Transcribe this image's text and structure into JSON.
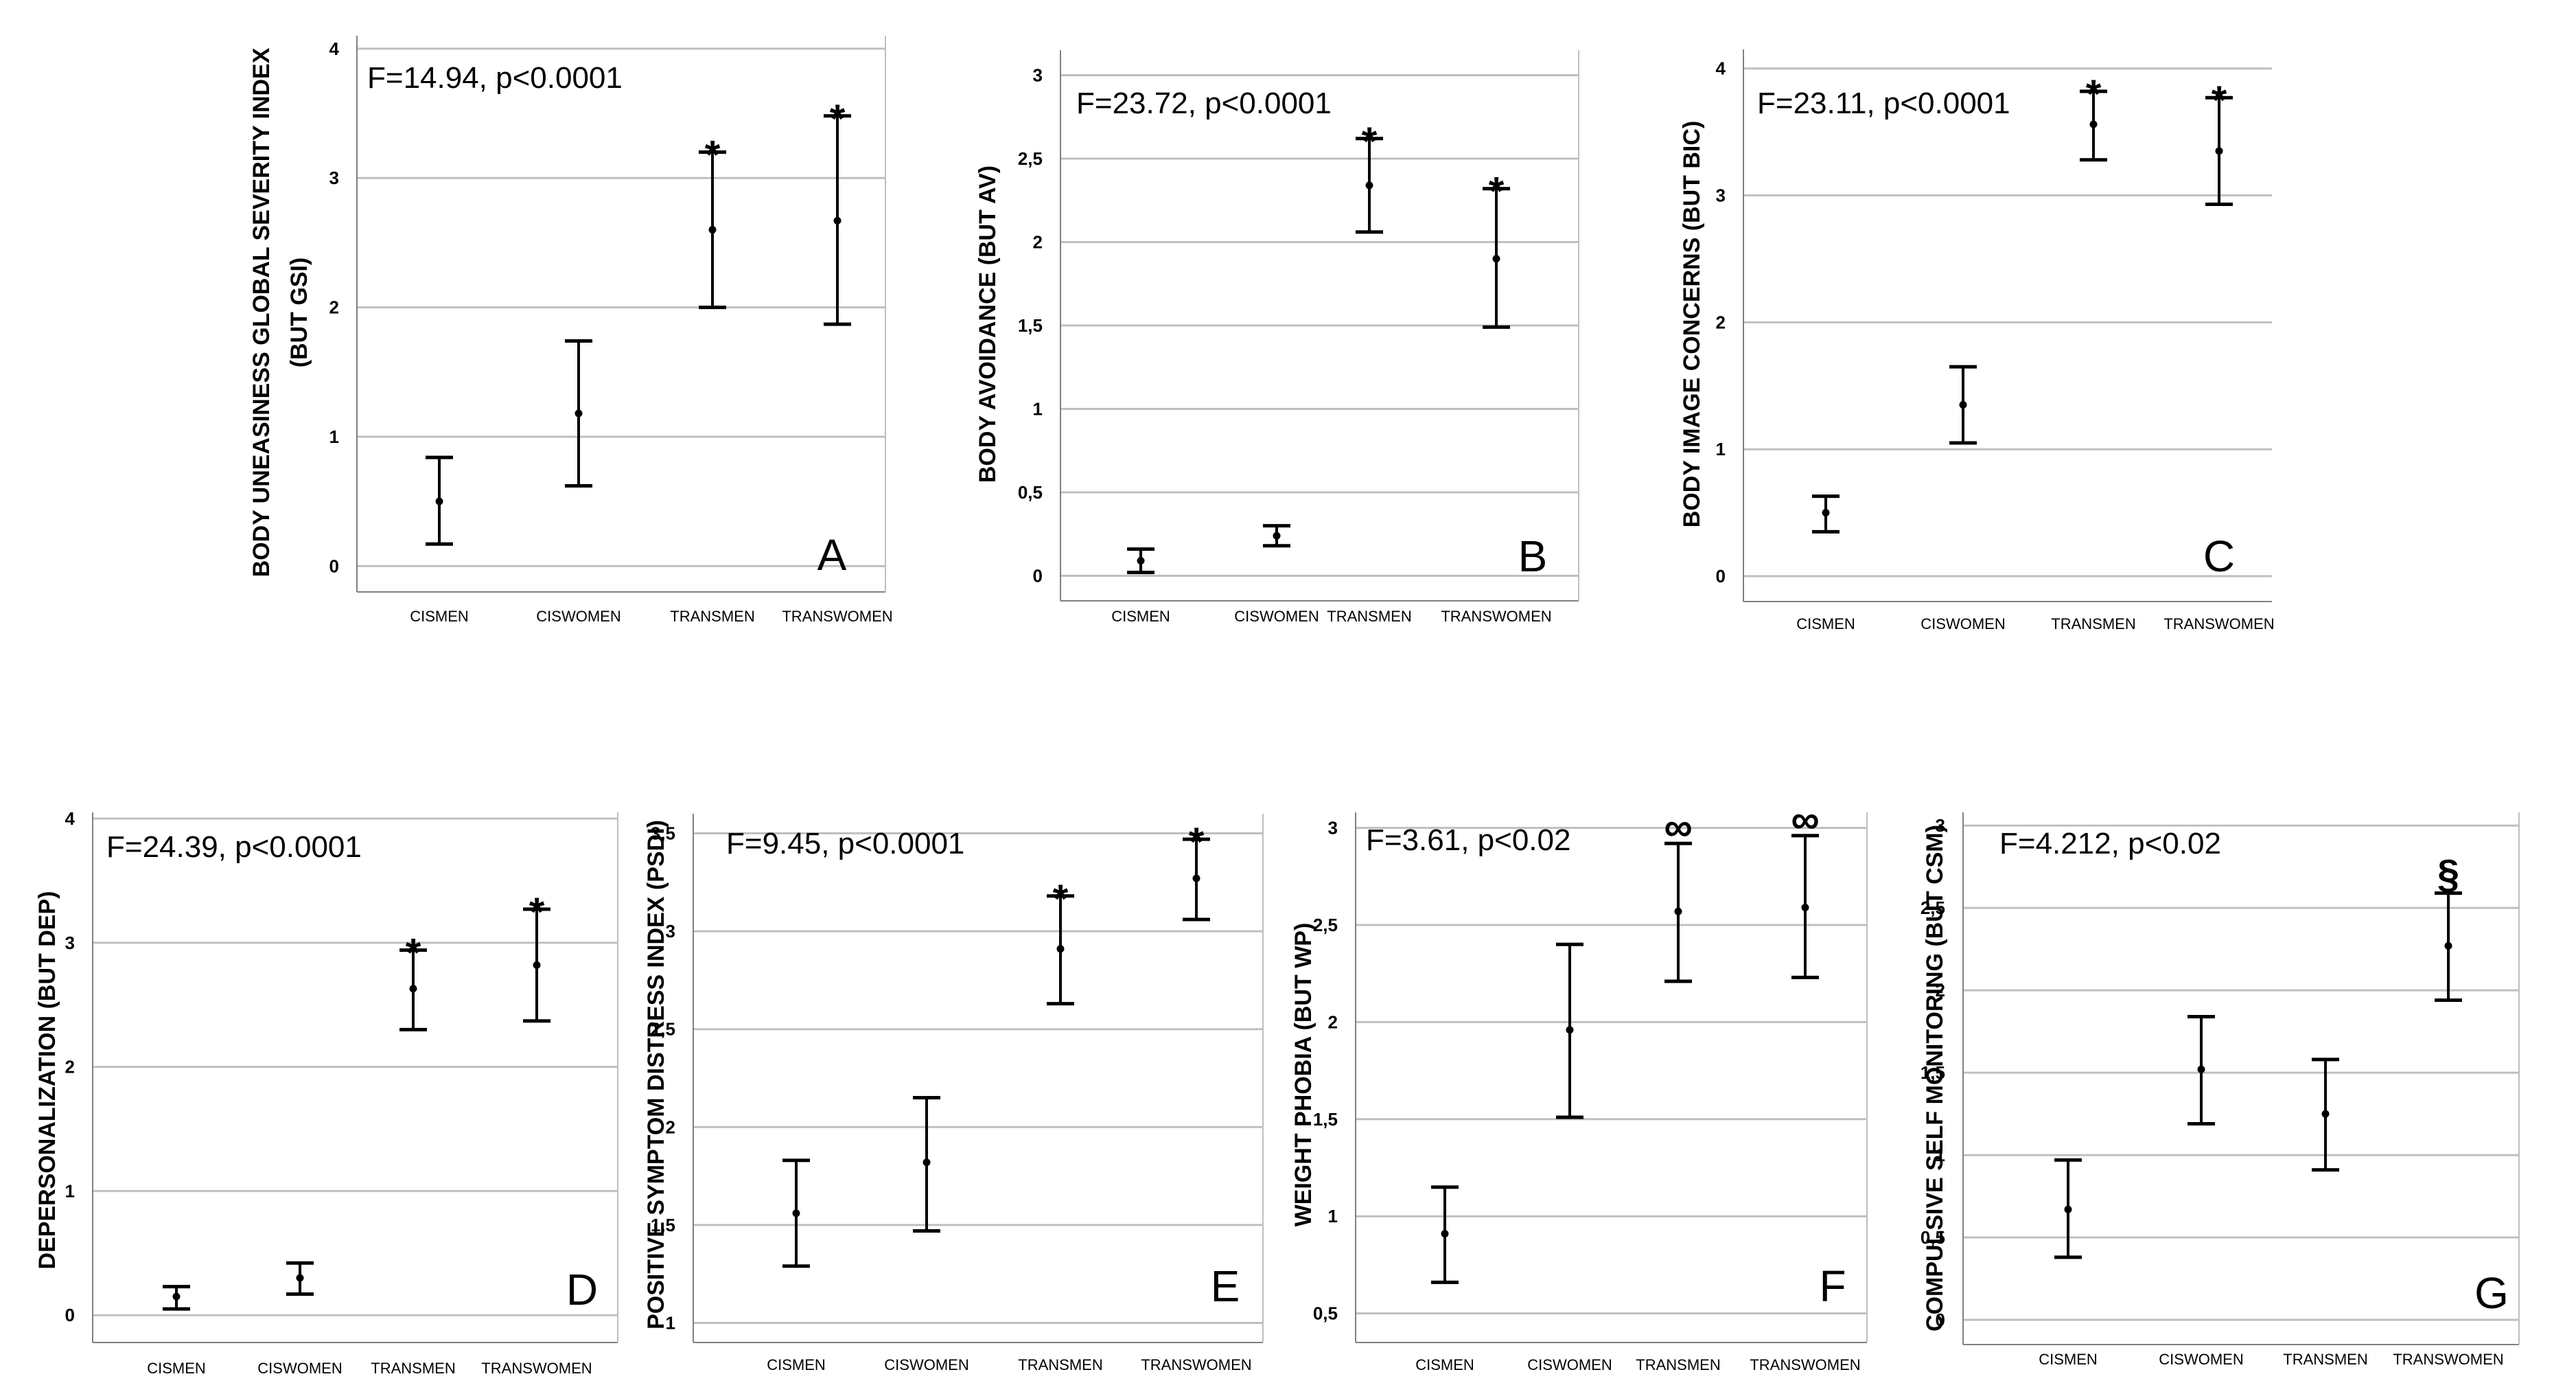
{
  "chart_data": [
    {
      "type": "errorbar",
      "panel": "A",
      "ylabel": "BODY UNEASINESS GLOBAL SEVERITY INDEX",
      "ylabel2": "(BUT GSI)",
      "stat": "F=14.94, p<0.0001",
      "categories": [
        "CISMEN",
        "CISWOMEN",
        "TRANSMEN",
        "TRANSWOMEN"
      ],
      "yticks": [
        0,
        1,
        2,
        3,
        4
      ],
      "ytick_labels": [
        "0",
        "1",
        "2",
        "3",
        "4"
      ],
      "ylim": [
        -0.2,
        4.1
      ],
      "series": [
        {
          "category": "CISMEN",
          "mean": 0.5,
          "lower": 0.17,
          "upper": 0.84,
          "mark": ""
        },
        {
          "category": "CISWOMEN",
          "mean": 1.18,
          "lower": 0.62,
          "upper": 1.74,
          "mark": ""
        },
        {
          "category": "TRANSMEN",
          "mean": 2.6,
          "lower": 2.0,
          "upper": 3.2,
          "mark": "*"
        },
        {
          "category": "TRANSWOMEN",
          "mean": 2.67,
          "lower": 1.87,
          "upper": 3.48,
          "mark": "*"
        }
      ]
    },
    {
      "type": "errorbar",
      "panel": "B",
      "ylabel": "BODY AVOIDANCE (BUT AV)",
      "ylabel2": "",
      "stat": "F=23.72, p<0.0001",
      "categories": [
        "CISMEN",
        "CISWOMEN",
        "TRANSMEN",
        "TRANSWOMEN"
      ],
      "yticks": [
        0,
        0.5,
        1,
        1.5,
        2,
        2.5,
        3
      ],
      "ytick_labels": [
        "0",
        "0,5",
        "1",
        "1,5",
        "2",
        "2,5",
        "3"
      ],
      "ylim": [
        -0.15,
        3.15
      ],
      "series": [
        {
          "category": "CISMEN",
          "mean": 0.09,
          "lower": 0.02,
          "upper": 0.16,
          "mark": ""
        },
        {
          "category": "CISWOMEN",
          "mean": 0.24,
          "lower": 0.18,
          "upper": 0.3,
          "mark": ""
        },
        {
          "category": "TRANSMEN",
          "mean": 2.34,
          "lower": 2.06,
          "upper": 2.62,
          "mark": "*"
        },
        {
          "category": "TRANSWOMEN",
          "mean": 1.9,
          "lower": 1.49,
          "upper": 2.32,
          "mark": "*"
        }
      ]
    },
    {
      "type": "errorbar",
      "panel": "C",
      "ylabel": "BODY IMAGE CONCERNS (BUT BIC)",
      "ylabel2": "",
      "stat": "F=23.11, p<0.0001",
      "categories": [
        "CISMEN",
        "CISWOMEN",
        "TRANSMEN",
        "TRANSWOMEN"
      ],
      "yticks": [
        0,
        1,
        2,
        3,
        4
      ],
      "ytick_labels": [
        "0",
        "1",
        "2",
        "3",
        "4"
      ],
      "ylim": [
        -0.2,
        4.15
      ],
      "series": [
        {
          "category": "CISMEN",
          "mean": 0.5,
          "lower": 0.35,
          "upper": 0.63,
          "mark": ""
        },
        {
          "category": "CISWOMEN",
          "mean": 1.35,
          "lower": 1.05,
          "upper": 1.65,
          "mark": ""
        },
        {
          "category": "TRANSMEN",
          "mean": 3.56,
          "lower": 3.28,
          "upper": 3.82,
          "mark": "*"
        },
        {
          "category": "TRANSWOMEN",
          "mean": 3.35,
          "lower": 2.93,
          "upper": 3.77,
          "mark": "*"
        }
      ]
    },
    {
      "type": "errorbar",
      "panel": "D",
      "ylabel": "DEPERSONALIZATION (BUT DEP)",
      "ylabel2": "",
      "stat": "F=24.39, p<0.0001",
      "categories": [
        "CISMEN",
        "CISWOMEN",
        "TRANSMEN",
        "TRANSWOMEN"
      ],
      "yticks": [
        0,
        1,
        2,
        3,
        4
      ],
      "ytick_labels": [
        "0",
        "1",
        "2",
        "3",
        "4"
      ],
      "ylim": [
        -0.22,
        4.05
      ],
      "series": [
        {
          "category": "CISMEN",
          "mean": 0.15,
          "lower": 0.05,
          "upper": 0.23,
          "mark": ""
        },
        {
          "category": "CISWOMEN",
          "mean": 0.3,
          "lower": 0.17,
          "upper": 0.42,
          "mark": ""
        },
        {
          "category": "TRANSMEN",
          "mean": 2.63,
          "lower": 2.3,
          "upper": 2.94,
          "mark": "*"
        },
        {
          "category": "TRANSWOMEN",
          "mean": 2.82,
          "lower": 2.37,
          "upper": 3.27,
          "mark": "*"
        }
      ]
    },
    {
      "type": "errorbar",
      "panel": "E",
      "ylabel": "POSITIVE SYMPTOM DISTRESS INDEX (PSDI)",
      "ylabel2": "",
      "stat": "F=9.45, p<0.0001",
      "categories": [
        "CISMEN",
        "CISWOMEN",
        "TRANSMEN",
        "TRANSWOMEN"
      ],
      "yticks": [
        1,
        1.5,
        2,
        2.5,
        3,
        3.5
      ],
      "ytick_labels": [
        "1",
        "1,5",
        "2",
        "2,5",
        "3",
        "3,5"
      ],
      "ylim": [
        0.9,
        3.6
      ],
      "series": [
        {
          "category": "CISMEN",
          "mean": 1.56,
          "lower": 1.29,
          "upper": 1.83,
          "mark": ""
        },
        {
          "category": "CISWOMEN",
          "mean": 1.82,
          "lower": 1.47,
          "upper": 2.15,
          "mark": ""
        },
        {
          "category": "TRANSMEN",
          "mean": 2.91,
          "lower": 2.63,
          "upper": 3.18,
          "mark": "*"
        },
        {
          "category": "TRANSWOMEN",
          "mean": 3.27,
          "lower": 3.06,
          "upper": 3.47,
          "mark": "*"
        }
      ]
    },
    {
      "type": "errorbar",
      "panel": "F",
      "ylabel": "WEIGHT PHOBIA (BUT WP)",
      "ylabel2": "",
      "stat": "F=3.61, p<0.02",
      "categories": [
        "CISMEN",
        "CISWOMEN",
        "TRANSMEN",
        "TRANSWOMEN"
      ],
      "yticks": [
        0.5,
        1,
        1.5,
        2,
        2.5,
        3
      ],
      "ytick_labels": [
        "0,5",
        "1",
        "1,5",
        "2",
        "2,5",
        "3"
      ],
      "ylim": [
        0.35,
        3.08
      ],
      "series": [
        {
          "category": "CISMEN",
          "mean": 0.91,
          "lower": 0.66,
          "upper": 1.15,
          "mark": ""
        },
        {
          "category": "CISWOMEN",
          "mean": 1.96,
          "lower": 1.51,
          "upper": 2.4,
          "mark": ""
        },
        {
          "category": "TRANSMEN",
          "mean": 2.57,
          "lower": 2.21,
          "upper": 2.92,
          "mark": "∞"
        },
        {
          "category": "TRANSWOMEN",
          "mean": 2.59,
          "lower": 2.23,
          "upper": 2.96,
          "mark": "∞"
        }
      ]
    },
    {
      "type": "errorbar",
      "panel": "G",
      "ylabel": "COMPULSIVE SELF MONITORING (BUT CSM)",
      "ylabel2": "",
      "stat": "F=4.212, p<0.02",
      "categories": [
        "CISMEN",
        "CISWOMEN",
        "TRANSMEN",
        "TRANSWOMEN"
      ],
      "yticks": [
        0,
        0.5,
        1,
        1.5,
        2,
        2.5,
        3
      ],
      "ytick_labels": [
        "0",
        "0,5",
        "1",
        "1,5",
        "2",
        "2,5",
        "3"
      ],
      "ylim": [
        -0.15,
        3.08
      ],
      "series": [
        {
          "category": "CISMEN",
          "mean": 0.67,
          "lower": 0.38,
          "upper": 0.97,
          "mark": ""
        },
        {
          "category": "CISWOMEN",
          "mean": 1.52,
          "lower": 1.19,
          "upper": 1.84,
          "mark": ""
        },
        {
          "category": "TRANSMEN",
          "mean": 1.25,
          "lower": 0.91,
          "upper": 1.58,
          "mark": ""
        },
        {
          "category": "TRANSWOMEN",
          "mean": 2.27,
          "lower": 1.94,
          "upper": 2.59,
          "mark": "§"
        }
      ]
    }
  ]
}
